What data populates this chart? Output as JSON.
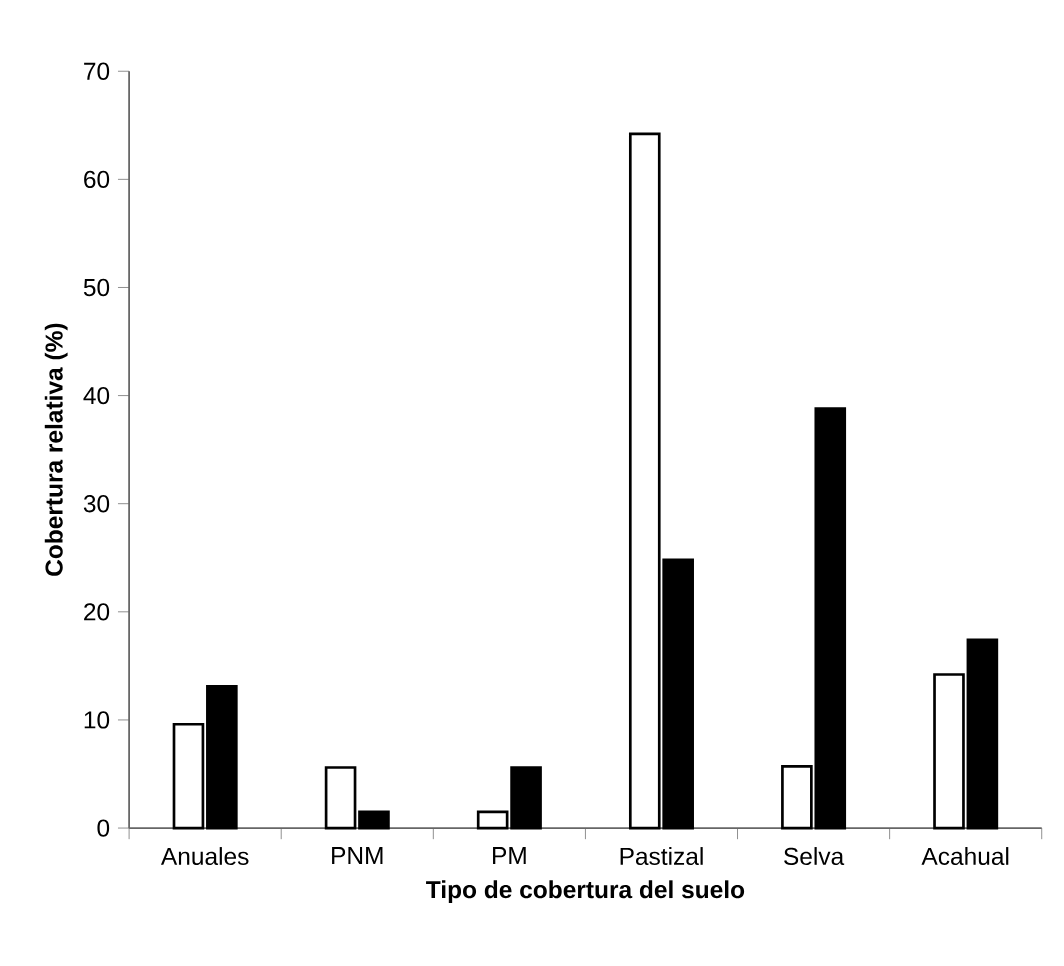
{
  "chart_data": {
    "type": "bar",
    "xlabel": "Tipo de cobertura del suelo",
    "ylabel": "Cobertura relativa (%)",
    "categories": [
      "Anuales",
      "PNM",
      "PM",
      "Pastizal",
      "Selva",
      "Acahual"
    ],
    "series": [
      {
        "color": "#ffffff",
        "values": [
          9.6,
          5.6,
          1.5,
          64.2,
          5.7,
          14.2
        ]
      },
      {
        "color": "#000000",
        "values": [
          13.1,
          1.5,
          5.6,
          24.8,
          38.8,
          17.4
        ]
      }
    ],
    "ylim": [
      0,
      70
    ],
    "yticks": [
      0,
      10,
      20,
      30,
      40,
      50,
      60,
      70
    ],
    "grid": false
  }
}
